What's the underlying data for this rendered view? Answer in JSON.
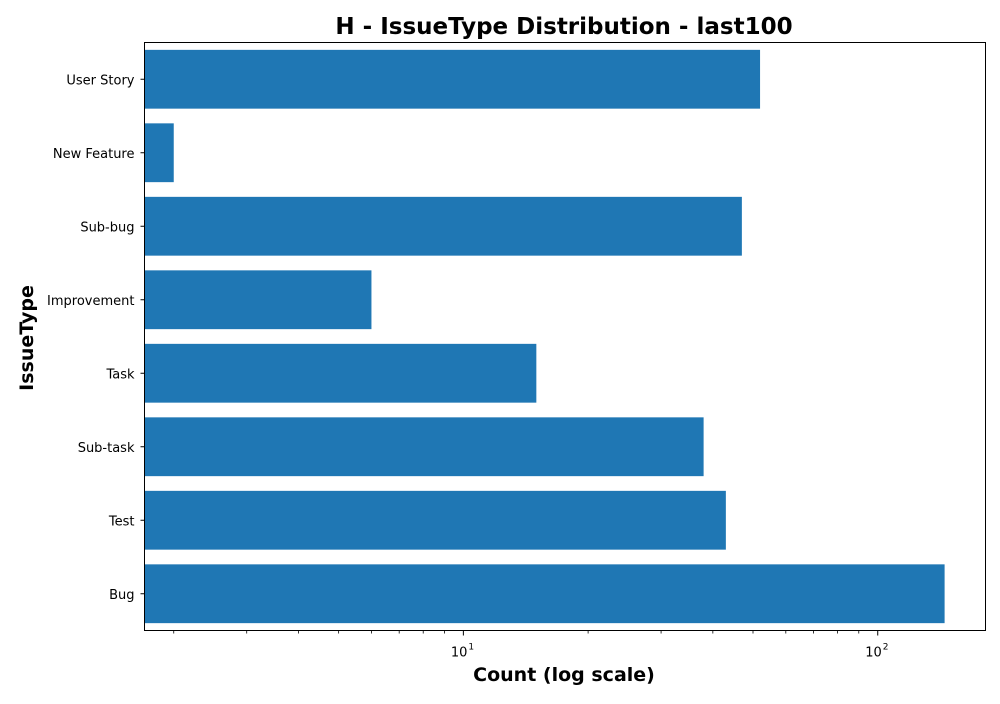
{
  "chart_data": {
    "type": "bar",
    "orientation": "horizontal",
    "title": "H - IssueType Distribution - last100",
    "xlabel": "Count (log scale)",
    "ylabel": "IssueType",
    "x_scale": "log",
    "xlim": [
      1.7,
      182
    ],
    "categories": [
      "Bug",
      "Test",
      "Sub-task",
      "Task",
      "Improvement",
      "Sub-bug",
      "New Feature",
      "User Story"
    ],
    "values": [
      145,
      43,
      38,
      15,
      6,
      47,
      2,
      52
    ],
    "x_ticks": [
      {
        "value": 10,
        "base": "10",
        "exp": "1"
      },
      {
        "value": 100,
        "base": "10",
        "exp": "2"
      }
    ],
    "grid": false,
    "legend": "none",
    "bar_color": "#1f77b4"
  }
}
